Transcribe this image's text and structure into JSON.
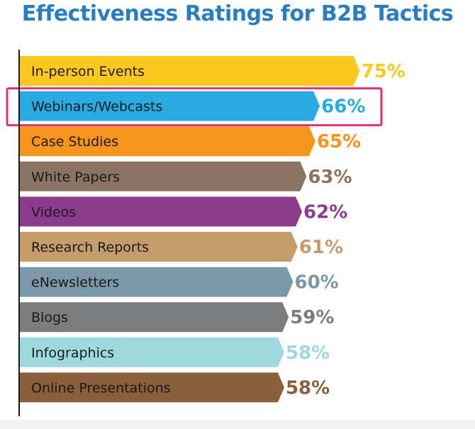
{
  "chart_data": {
    "type": "bar",
    "orientation": "horizontal",
    "title": "Effectiveness Ratings for B2B Tactics",
    "categories": [
      "In-person Events",
      "Webinars/Webcasts",
      "Case Studies",
      "White Papers",
      "Videos",
      "Research Reports",
      "eNewsletters",
      "Blogs",
      "Infographics",
      "Online Presentations"
    ],
    "values": [
      75,
      66,
      65,
      63,
      62,
      61,
      60,
      59,
      58,
      58
    ],
    "value_labels": [
      "75%",
      "66%",
      "65%",
      "63%",
      "62%",
      "61%",
      "60%",
      "59%",
      "58%",
      "58%"
    ],
    "colors": [
      "#fcc820",
      "#29abe2",
      "#f7941d",
      "#8b7463",
      "#8b3c8d",
      "#c69c6d",
      "#7b98ab",
      "#7b7d7f",
      "#9ed9dd",
      "#8b5e3c"
    ],
    "value_label_colors": [
      "#fcc820",
      "#29abe2",
      "#f7941d",
      "#8b7463",
      "#8b3c8d",
      "#c69c6d",
      "#7b98ab",
      "#7b7d7f",
      "#9ed9dd",
      "#8b5e3c"
    ],
    "highlighted_category": "Webinars/Webcasts",
    "highlight_color": "#e0336e",
    "xlim": [
      0,
      100
    ],
    "grid": false,
    "legend": "none"
  }
}
